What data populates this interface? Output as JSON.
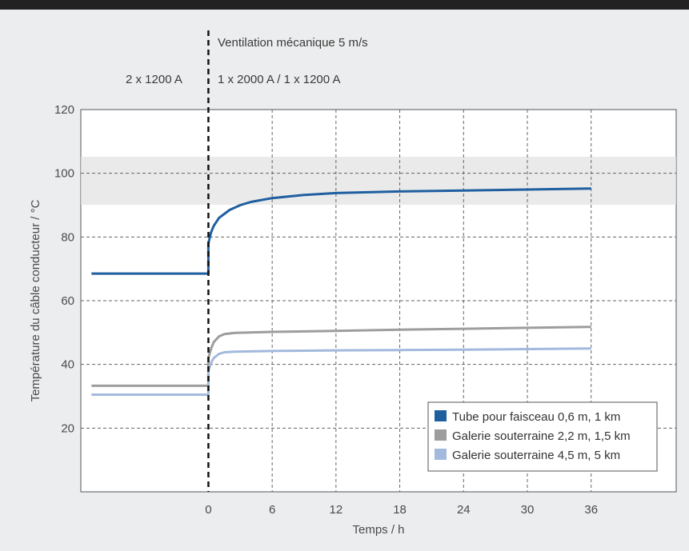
{
  "chart_data": {
    "type": "line",
    "xlabel": "Temps / h",
    "ylabel": "Température du câble conducteur / °C",
    "xlim": [
      -12,
      44
    ],
    "ylim": [
      0,
      120
    ],
    "x_ticks": [
      0,
      6,
      12,
      18,
      24,
      30,
      36
    ],
    "y_ticks": [
      20,
      40,
      60,
      80,
      100,
      120
    ],
    "grid": true,
    "legend_position": "bottom-right",
    "annotations": {
      "event_line_x": 0,
      "event_label": "Ventilation mécanique 5 m/s",
      "before_label": "2 x 1200 A",
      "after_label": "1 x 2000 A / 1 x 1200 A"
    },
    "series": [
      {
        "name": "Tube pour faisceau 0,6 m, 1 km",
        "color": "#1f5fa0",
        "points": [
          [
            -11,
            68.5
          ],
          [
            0,
            68.5
          ],
          [
            0,
            78
          ],
          [
            0.25,
            81.5
          ],
          [
            0.5,
            83.5
          ],
          [
            1,
            86
          ],
          [
            2,
            88.5
          ],
          [
            3,
            90
          ],
          [
            4,
            91
          ],
          [
            6,
            92.2
          ],
          [
            9,
            93.2
          ],
          [
            12,
            93.8
          ],
          [
            18,
            94.3
          ],
          [
            24,
            94.6
          ],
          [
            30,
            94.9
          ],
          [
            36,
            95.2
          ]
        ]
      },
      {
        "name": "Galerie souterraine 2,2 m, 1,5 km",
        "color": "#9d9d9d",
        "points": [
          [
            -11,
            33.3
          ],
          [
            0,
            33.3
          ],
          [
            0,
            42
          ],
          [
            0.25,
            45
          ],
          [
            0.5,
            47
          ],
          [
            1,
            48.8
          ],
          [
            1.5,
            49.5
          ],
          [
            2.5,
            49.9
          ],
          [
            6,
            50.2
          ],
          [
            12,
            50.5
          ],
          [
            18,
            50.9
          ],
          [
            24,
            51.2
          ],
          [
            30,
            51.5
          ],
          [
            36,
            51.8
          ]
        ]
      },
      {
        "name": "Galerie souterraine 4,5 m, 5 km",
        "color": "#a3b9dd",
        "points": [
          [
            -11,
            30.5
          ],
          [
            0,
            30.5
          ],
          [
            0,
            38
          ],
          [
            0.25,
            40.5
          ],
          [
            0.5,
            42
          ],
          [
            1,
            43.3
          ],
          [
            1.5,
            43.8
          ],
          [
            2.5,
            44
          ],
          [
            6,
            44.2
          ],
          [
            12,
            44.4
          ],
          [
            18,
            44.5
          ],
          [
            24,
            44.6
          ],
          [
            30,
            44.8
          ],
          [
            36,
            45
          ]
        ]
      }
    ]
  }
}
